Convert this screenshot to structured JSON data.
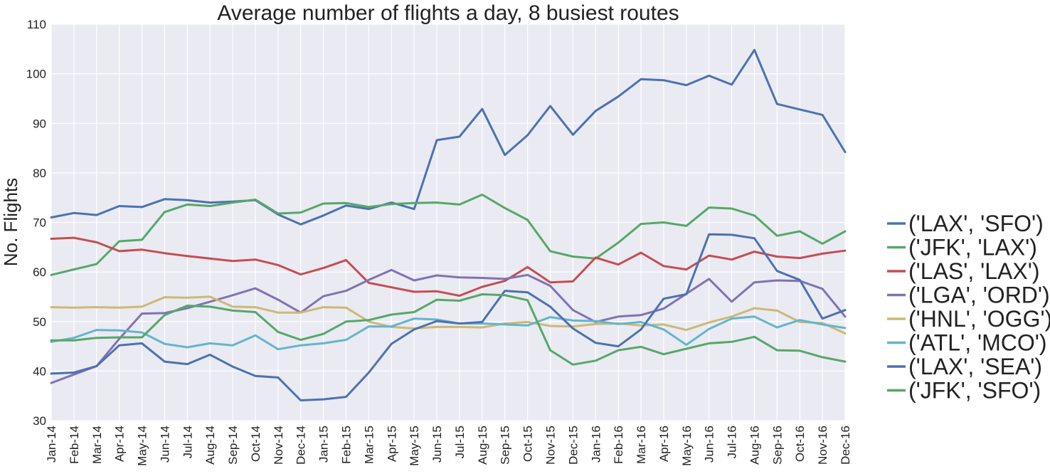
{
  "chart_data": {
    "type": "line",
    "title": "Average number of flights a day, 8 busiest routes",
    "xlabel": "",
    "ylabel": "No. Flights",
    "ylim": [
      30,
      110
    ],
    "yticks": [
      30,
      40,
      50,
      60,
      70,
      80,
      90,
      100,
      110
    ],
    "grid": true,
    "legend_position": "right",
    "x": [
      "Jan-14",
      "Feb-14",
      "Mar-14",
      "Apr-14",
      "May-14",
      "Jun-14",
      "Jul-14",
      "Aug-14",
      "Sep-14",
      "Oct-14",
      "Nov-14",
      "Dec-14",
      "Jan-15",
      "Feb-15",
      "Mar-15",
      "Apr-15",
      "May-15",
      "Jun-15",
      "Jul-15",
      "Aug-15",
      "Sep-15",
      "Oct-15",
      "Nov-15",
      "Dec-15",
      "Jan-16",
      "Feb-16",
      "Mar-16",
      "Apr-16",
      "May-16",
      "Jun-16",
      "Jul-16",
      "Aug-16",
      "Sep-16",
      "Oct-16",
      "Nov-16",
      "Dec-16"
    ],
    "series": [
      {
        "name": "('LAX', 'SFO')",
        "color": "#4c72b0",
        "values": [
          71.0,
          71.9,
          71.5,
          73.3,
          73.1,
          74.7,
          74.5,
          74.0,
          74.2,
          74.5,
          71.6,
          69.6,
          71.4,
          73.4,
          72.7,
          74.0,
          72.7,
          86.6,
          87.3,
          92.9,
          83.6,
          87.6,
          93.5,
          87.7,
          92.5,
          95.4,
          98.9,
          98.7,
          97.7,
          99.6,
          97.8,
          104.8,
          93.9,
          92.8,
          91.7,
          84.2
        ]
      },
      {
        "name": "('JFK', 'LAX')",
        "color": "#55a868",
        "values": [
          59.4,
          60.5,
          61.6,
          66.2,
          66.5,
          72.1,
          73.6,
          73.3,
          74.0,
          74.6,
          71.8,
          72.0,
          73.8,
          73.9,
          73.1,
          73.7,
          73.9,
          74.0,
          73.6,
          75.6,
          72.9,
          70.5,
          64.2,
          63.1,
          62.7,
          65.9,
          69.7,
          70.0,
          69.3,
          73.0,
          72.8,
          71.4,
          67.3,
          68.2,
          65.7,
          68.2
        ]
      },
      {
        "name": "('LAS', 'LAX')",
        "color": "#c44e52",
        "values": [
          66.7,
          66.9,
          66.0,
          64.2,
          64.5,
          63.8,
          63.2,
          62.7,
          62.2,
          62.5,
          61.4,
          59.5,
          60.8,
          62.4,
          57.8,
          56.9,
          56.0,
          56.1,
          55.2,
          57.0,
          58.2,
          61.0,
          57.9,
          58.1,
          62.9,
          61.5,
          63.9,
          61.2,
          60.5,
          63.3,
          62.5,
          64.1,
          63.1,
          62.8,
          63.7,
          64.3
        ]
      },
      {
        "name": "('LGA', 'ORD')",
        "color": "#8172b2",
        "values": [
          37.6,
          39.3,
          41.0,
          46.5,
          51.6,
          51.7,
          52.7,
          54.0,
          55.3,
          56.7,
          54.4,
          51.8,
          55.1,
          56.2,
          58.4,
          60.4,
          58.3,
          59.3,
          58.9,
          58.8,
          58.6,
          59.4,
          57.2,
          52.3,
          49.9,
          51.0,
          51.3,
          52.6,
          55.6,
          58.6,
          54.0,
          57.9,
          58.3,
          58.2,
          56.6,
          51.0
        ]
      },
      {
        "name": "('HNL', 'OGG')",
        "color": "#ccb974",
        "values": [
          52.9,
          52.8,
          52.9,
          52.8,
          53.0,
          54.9,
          54.8,
          55.0,
          53.0,
          52.9,
          51.8,
          51.8,
          52.9,
          52.8,
          50.0,
          48.9,
          48.6,
          48.9,
          48.9,
          48.8,
          49.6,
          49.9,
          49.1,
          49.0,
          49.5,
          49.6,
          49.2,
          49.4,
          48.3,
          49.8,
          51.0,
          52.7,
          52.2,
          49.9,
          49.7,
          47.6
        ]
      },
      {
        "name": "('ATL', 'MCO')",
        "color": "#64b5cd",
        "values": [
          45.9,
          46.7,
          48.3,
          48.2,
          47.8,
          45.5,
          44.8,
          45.6,
          45.2,
          47.2,
          44.4,
          45.2,
          45.6,
          46.3,
          49.0,
          49.0,
          50.6,
          50.4,
          49.6,
          49.6,
          49.4,
          49.2,
          50.9,
          50.2,
          50.1,
          49.5,
          49.9,
          48.4,
          45.3,
          48.5,
          50.6,
          51.0,
          48.8,
          50.3,
          49.4,
          48.7
        ]
      },
      {
        "name": "('LAX', 'SEA')",
        "color": "#4c72b0",
        "values": [
          39.5,
          39.7,
          41.0,
          45.2,
          45.6,
          41.9,
          41.4,
          43.3,
          40.9,
          39.0,
          38.7,
          34.1,
          34.3,
          34.8,
          39.7,
          45.5,
          48.4,
          50.1,
          49.6,
          49.9,
          56.2,
          55.9,
          53.0,
          48.6,
          45.7,
          45.0,
          48.4,
          54.6,
          55.5,
          67.6,
          67.5,
          66.8,
          60.2,
          58.4,
          50.6,
          52.3
        ]
      },
      {
        "name": "('JFK', 'SFO')",
        "color": "#55a868",
        "values": [
          46.2,
          46.2,
          46.7,
          46.8,
          46.8,
          51.3,
          53.2,
          53.0,
          52.2,
          51.9,
          47.9,
          46.3,
          47.5,
          50.0,
          50.3,
          51.4,
          51.9,
          54.4,
          54.2,
          55.5,
          55.3,
          54.3,
          44.2,
          41.3,
          42.1,
          44.2,
          44.9,
          43.4,
          44.5,
          45.6,
          45.9,
          46.9,
          44.2,
          44.1,
          42.8,
          41.9
        ]
      }
    ]
  }
}
